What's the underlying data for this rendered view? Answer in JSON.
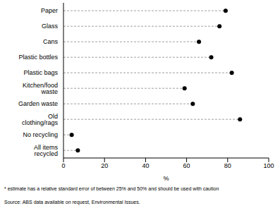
{
  "chart_data": {
    "type": "dot",
    "orientation": "horizontal",
    "categories": [
      "Paper",
      "Glass",
      "Cans",
      "Plastic bottles",
      "Plastic bags",
      "Kitchen/food waste",
      "Garden waste",
      "Old clothing/rags",
      "No recycling",
      "All items recycled"
    ],
    "values": [
      79,
      76,
      66,
      72,
      82,
      59,
      63,
      86,
      4,
      7
    ],
    "color": "#000000",
    "x_label": "%",
    "xlim": [
      0,
      100
    ],
    "xticks": [
      0,
      20,
      40,
      60,
      80,
      100
    ],
    "grid": false,
    "marker": "circle",
    "line_style": "dashed",
    "annotations": [
      "* estimate has a relative standard error of between 25% and 50% and should be used with caution",
      "Source: ABS data available on request, Environmental Issues."
    ]
  }
}
